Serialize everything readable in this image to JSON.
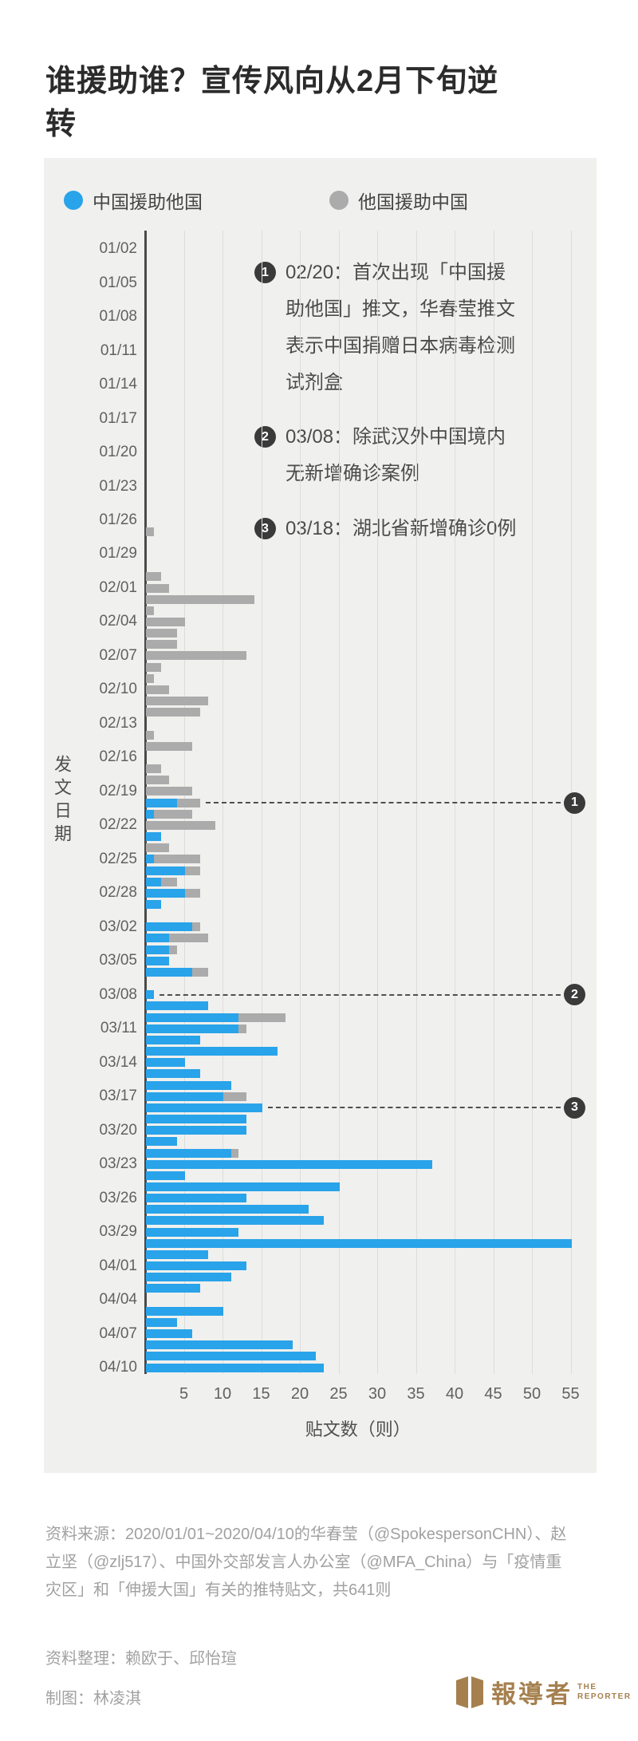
{
  "title": "谁援助谁？宣传风向从2月下旬逆转",
  "colors": {
    "china_blue": "#29a3e9",
    "others_gray": "#ababab",
    "card_bg": "#f0f0ee",
    "logo_gold": "#a5804e"
  },
  "legend": [
    {
      "label": "中国援助他国",
      "color": "#29a3e9"
    },
    {
      "label": "他国援助中国",
      "color": "#ababab"
    }
  ],
  "annotations": [
    {
      "num": "1",
      "row": "02/20",
      "text": "02/20：首次出现「中国援\n助他国」推文，华春莹推文\n表示中国捐赠日本病毒检测\n试剂盒"
    },
    {
      "num": "2",
      "row": "03/08",
      "text": "03/08：除武汉外中国境内\n无新增确诊案例"
    },
    {
      "num": "3",
      "row": "03/18",
      "text": "03/18：湖北省新增确诊0例"
    }
  ],
  "chart_data": {
    "type": "bar",
    "orientation": "horizontal",
    "stacked": true,
    "ylabel": "发文日期",
    "xlabel": "贴文数（则）",
    "x_ticks": [
      5,
      10,
      15,
      20,
      25,
      30,
      35,
      40,
      45,
      50,
      55
    ],
    "xlim": [
      0,
      57
    ],
    "y_label_every": "3 days, labels on 01/02, 01/05 … 04/10",
    "series": [
      {
        "name": "中国援助他国",
        "color": "#29a3e9",
        "key": "china_helps_others"
      },
      {
        "name": "他国援助中国",
        "color": "#ababab",
        "key": "others_help_china"
      }
    ],
    "columns": [
      "date",
      "china_helps_others",
      "others_help_china"
    ],
    "rows": [
      [
        "01/01",
        0,
        0
      ],
      [
        "01/02",
        0,
        0
      ],
      [
        "01/03",
        0,
        0
      ],
      [
        "01/04",
        0,
        0
      ],
      [
        "01/05",
        0,
        0
      ],
      [
        "01/06",
        0,
        0
      ],
      [
        "01/07",
        0,
        0
      ],
      [
        "01/08",
        0,
        0
      ],
      [
        "01/09",
        0,
        0
      ],
      [
        "01/10",
        0,
        0
      ],
      [
        "01/11",
        0,
        0
      ],
      [
        "01/12",
        0,
        0
      ],
      [
        "01/13",
        0,
        0
      ],
      [
        "01/14",
        0,
        0
      ],
      [
        "01/15",
        0,
        0
      ],
      [
        "01/16",
        0,
        0
      ],
      [
        "01/17",
        0,
        0
      ],
      [
        "01/18",
        0,
        0
      ],
      [
        "01/19",
        0,
        0
      ],
      [
        "01/20",
        0,
        0
      ],
      [
        "01/21",
        0,
        0
      ],
      [
        "01/22",
        0,
        0
      ],
      [
        "01/23",
        0,
        0
      ],
      [
        "01/24",
        0,
        0
      ],
      [
        "01/25",
        0,
        0
      ],
      [
        "01/26",
        0,
        0
      ],
      [
        "01/27",
        0,
        1
      ],
      [
        "01/28",
        0,
        0
      ],
      [
        "01/29",
        0,
        0
      ],
      [
        "01/30",
        0,
        0
      ],
      [
        "01/31",
        0,
        2
      ],
      [
        "02/01",
        0,
        3
      ],
      [
        "02/02",
        0,
        14
      ],
      [
        "02/03",
        0,
        1
      ],
      [
        "02/04",
        0,
        5
      ],
      [
        "02/05",
        0,
        4
      ],
      [
        "02/06",
        0,
        4
      ],
      [
        "02/07",
        0,
        13
      ],
      [
        "02/08",
        0,
        2
      ],
      [
        "02/09",
        0,
        1
      ],
      [
        "02/10",
        0,
        3
      ],
      [
        "02/11",
        0,
        8
      ],
      [
        "02/12",
        0,
        7
      ],
      [
        "02/13",
        0,
        0
      ],
      [
        "02/14",
        0,
        1
      ],
      [
        "02/15",
        0,
        6
      ],
      [
        "02/16",
        0,
        0
      ],
      [
        "02/17",
        0,
        2
      ],
      [
        "02/18",
        0,
        3
      ],
      [
        "02/19",
        0,
        6
      ],
      [
        "02/20",
        4,
        3
      ],
      [
        "02/21",
        1,
        5
      ],
      [
        "02/22",
        0,
        9
      ],
      [
        "02/23",
        2,
        0
      ],
      [
        "02/24",
        0,
        3
      ],
      [
        "02/25",
        1,
        6
      ],
      [
        "02/26",
        5,
        2
      ],
      [
        "02/27",
        2,
        2
      ],
      [
        "02/28",
        5,
        2
      ],
      [
        "02/29",
        2,
        0
      ],
      [
        "03/01",
        0,
        0
      ],
      [
        "03/02",
        6,
        1
      ],
      [
        "03/03",
        3,
        5
      ],
      [
        "03/04",
        3,
        1
      ],
      [
        "03/05",
        3,
        0
      ],
      [
        "03/06",
        6,
        2
      ],
      [
        "03/07",
        0,
        0
      ],
      [
        "03/08",
        1,
        0
      ],
      [
        "03/09",
        8,
        0
      ],
      [
        "03/10",
        12,
        6
      ],
      [
        "03/11",
        12,
        1
      ],
      [
        "03/12",
        7,
        0
      ],
      [
        "03/13",
        17,
        0
      ],
      [
        "03/14",
        5,
        0
      ],
      [
        "03/15",
        7,
        0
      ],
      [
        "03/16",
        11,
        0
      ],
      [
        "03/17",
        10,
        3
      ],
      [
        "03/18",
        15,
        0
      ],
      [
        "03/19",
        13,
        0
      ],
      [
        "03/20",
        13,
        0
      ],
      [
        "03/21",
        4,
        0
      ],
      [
        "03/22",
        11,
        1
      ],
      [
        "03/23",
        37,
        0
      ],
      [
        "03/24",
        5,
        0
      ],
      [
        "03/25",
        25,
        0
      ],
      [
        "03/26",
        13,
        0
      ],
      [
        "03/27",
        21,
        0
      ],
      [
        "03/28",
        23,
        0
      ],
      [
        "03/29",
        12,
        0
      ],
      [
        "03/30",
        55,
        0
      ],
      [
        "03/31",
        8,
        0
      ],
      [
        "04/01",
        13,
        0
      ],
      [
        "04/02",
        11,
        0
      ],
      [
        "04/03",
        7,
        0
      ],
      [
        "04/04",
        0,
        0
      ],
      [
        "04/05",
        10,
        0
      ],
      [
        "04/06",
        4,
        0
      ],
      [
        "04/07",
        6,
        0
      ],
      [
        "04/08",
        19,
        0
      ],
      [
        "04/09",
        22,
        0
      ],
      [
        "04/10",
        23,
        0
      ]
    ],
    "total_posts": 641
  },
  "footer": {
    "source": "资料来源：2020/01/01~2020/04/10的华春莹（@SpokespersonCHN）、赵立坚（@zlj517）、中国外交部发言人办公室（@MFA_China）与「疫情重灾区」和「伸援大国」有关的推特贴文，共641则",
    "editors": "资料整理：赖欧于、邱怡瑄",
    "graphics": "制图：林凌淇",
    "logo_cn": "報導者",
    "logo_en_line1": "THE",
    "logo_en_line2": "REPORTER"
  }
}
